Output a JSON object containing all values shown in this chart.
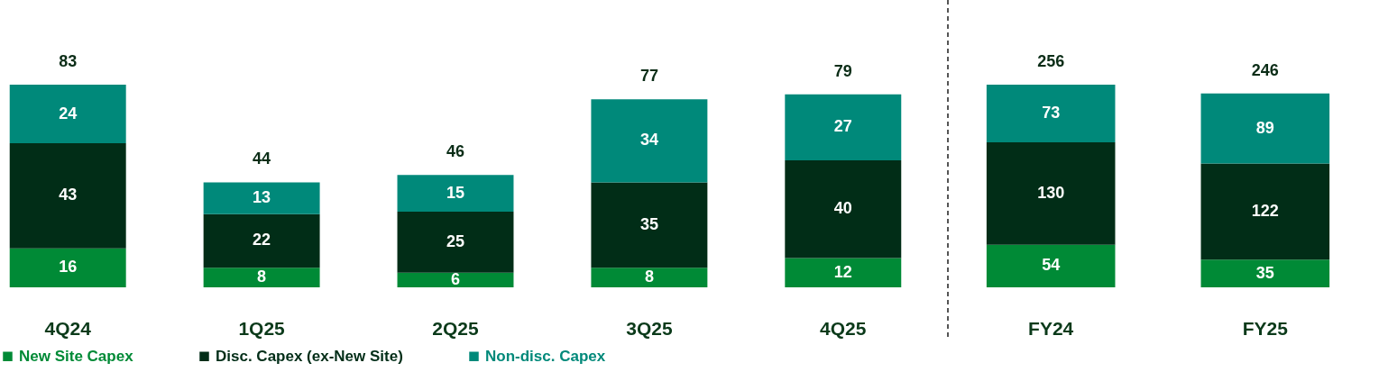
{
  "chart_data": [
    {
      "type": "bar",
      "stacked": true,
      "categories": [
        "4Q24",
        "1Q25",
        "2Q25",
        "3Q25",
        "4Q25"
      ],
      "series": [
        {
          "name": "New Site Capex",
          "color": "#008a36",
          "values": [
            16,
            8,
            6,
            8,
            12
          ]
        },
        {
          "name": "Disc. Capex (ex-New Site)",
          "color": "#012d17",
          "values": [
            43,
            22,
            25,
            35,
            40
          ]
        },
        {
          "name": "Non-disc. Capex",
          "color": "#00897a",
          "values": [
            24,
            13,
            15,
            34,
            27
          ]
        }
      ],
      "totals": [
        "83",
        "44",
        "46",
        "77",
        "79"
      ],
      "data_labels": true,
      "legend": "bottom",
      "grid": false,
      "tick_labels": "x"
    },
    {
      "type": "bar",
      "stacked": true,
      "categories": [
        "FY24",
        "FY25"
      ],
      "series": [
        {
          "color": "#008a36",
          "values": [
            54,
            35
          ]
        },
        {
          "color": "#012d17",
          "values": [
            130,
            122
          ]
        },
        {
          "color": "#00897a",
          "values": [
            73,
            89
          ]
        }
      ],
      "totals": [
        "256",
        "246"
      ],
      "data_labels": true,
      "grid": false,
      "tick_labels": "x"
    }
  ]
}
